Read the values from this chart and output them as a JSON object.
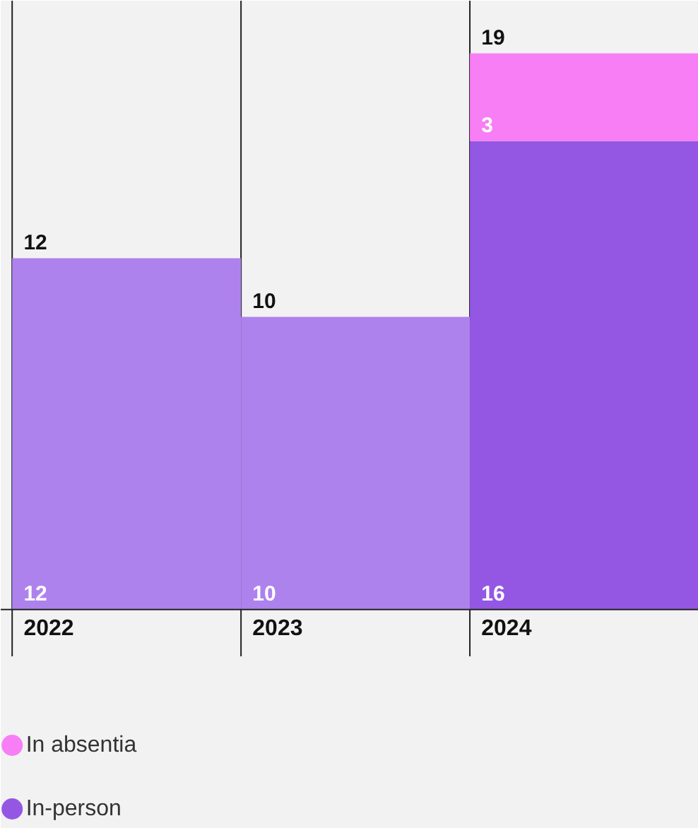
{
  "chart_data": {
    "type": "bar",
    "stacked": true,
    "categories": [
      "2022",
      "2023",
      "2024"
    ],
    "series": [
      {
        "name": "In-person",
        "colors": [
          "#ae82ec",
          "#ae82ec",
          "#9457e4"
        ],
        "values": [
          12,
          10,
          16
        ]
      },
      {
        "name": "In absentia",
        "color": "#f77ef5",
        "values": [
          null,
          null,
          3
        ]
      }
    ],
    "data_labels": true,
    "totals": [
      "12",
      "10",
      "19"
    ],
    "ylim": [
      0,
      20.8
    ],
    "legend": "bottom left"
  }
}
